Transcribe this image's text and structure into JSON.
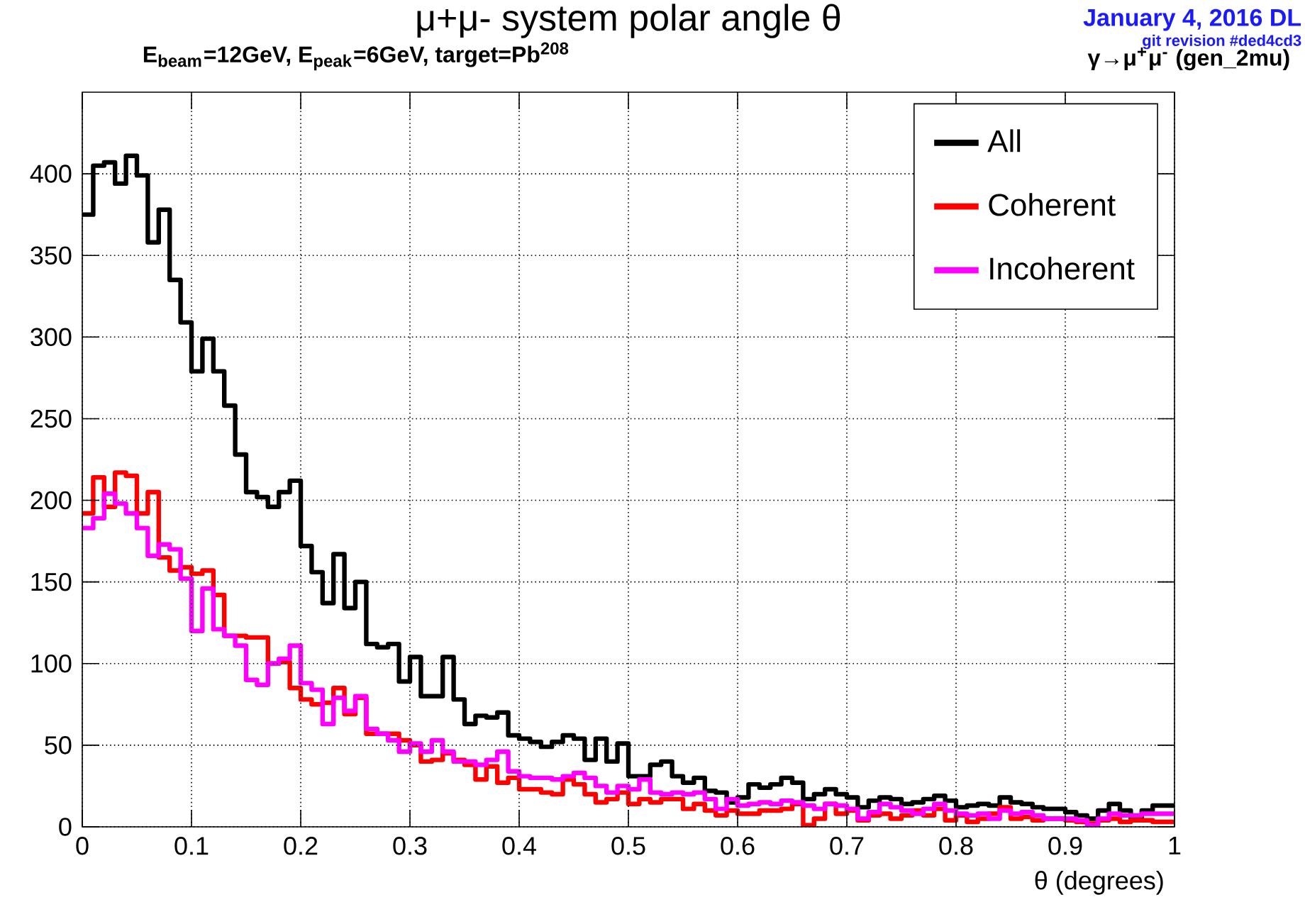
{
  "chart_data": {
    "type": "histogram",
    "title": "μ+μ- system polar angle θ",
    "subtitle": "E$_{beam}$=12GeV,  E$_{peak}$=6GeV,  target=Pb$^{208}$",
    "xlabel": "θ (degrees)",
    "annotations": [
      "January  4, 2016 DL",
      "git revision #ded4cd3",
      "γ→μ$^{+}$μ$^{-}$ (gen_2mu)"
    ],
    "bins": [
      0,
      0.01,
      0.02,
      0.03,
      0.04,
      0.05,
      0.06,
      0.07,
      0.08,
      0.09,
      0.1,
      0.11,
      0.12,
      0.13,
      0.14,
      0.15,
      0.16,
      0.17,
      0.18,
      0.19,
      0.2,
      0.21,
      0.22,
      0.23,
      0.24,
      0.25,
      0.26,
      0.27,
      0.28,
      0.29,
      0.3,
      0.31,
      0.32,
      0.33,
      0.34,
      0.35,
      0.36,
      0.37,
      0.38,
      0.39,
      0.4,
      0.41,
      0.42,
      0.43,
      0.44,
      0.45,
      0.46,
      0.47,
      0.48,
      0.49,
      0.5,
      0.51,
      0.52,
      0.53,
      0.54,
      0.55,
      0.56,
      0.57,
      0.58,
      0.59,
      0.6,
      0.61,
      0.62,
      0.63,
      0.64,
      0.65,
      0.66,
      0.67,
      0.68,
      0.69,
      0.7,
      0.71,
      0.72,
      0.73,
      0.74,
      0.75,
      0.76,
      0.77,
      0.78,
      0.79,
      0.8,
      0.81,
      0.82,
      0.83,
      0.84,
      0.85,
      0.86,
      0.87,
      0.88,
      0.89,
      0.9,
      0.91,
      0.92,
      0.93,
      0.94,
      0.95,
      0.96,
      0.97,
      0.98,
      0.99,
      1
    ],
    "series": [
      {
        "name": "All",
        "color": "#000000",
        "values": [
          375,
          405,
          407,
          394,
          411,
          399,
          358,
          378,
          335,
          309,
          279,
          299,
          279,
          258,
          228,
          205,
          202,
          196,
          205,
          212,
          172,
          156,
          137,
          167,
          134,
          150,
          112,
          110,
          112,
          89,
          104,
          80,
          80,
          104,
          78,
          63,
          68,
          67,
          70,
          56,
          54,
          52,
          49,
          52,
          56,
          54,
          41,
          54,
          40,
          51,
          31,
          31,
          38,
          40,
          31,
          27,
          30,
          22,
          21,
          15,
          18,
          26,
          24,
          26,
          30,
          27,
          17,
          20,
          23,
          20,
          18,
          12,
          16,
          18,
          17,
          14,
          15,
          17,
          19,
          16,
          12,
          13,
          14,
          13,
          18,
          15,
          14,
          12,
          11,
          11,
          9,
          7,
          5,
          10,
          14,
          10,
          5,
          10,
          13,
          13
        ]
      },
      {
        "name": "Coherent",
        "color": "#ff0000",
        "values": [
          192,
          214,
          196,
          217,
          215,
          192,
          205,
          165,
          157,
          159,
          155,
          157,
          142,
          117,
          117,
          116,
          116,
          100,
          101,
          85,
          78,
          75,
          76,
          85,
          69,
          79,
          57,
          57,
          57,
          53,
          50,
          40,
          41,
          45,
          41,
          38,
          29,
          37,
          27,
          30,
          23,
          23,
          21,
          20,
          29,
          26,
          20,
          15,
          17,
          21,
          14,
          17,
          15,
          17,
          17,
          11,
          14,
          10,
          7,
          10,
          8,
          8,
          10,
          10,
          11,
          14,
          1,
          5,
          14,
          8,
          10,
          4,
          7,
          8,
          5,
          7,
          10,
          7,
          11,
          4,
          7,
          3,
          5,
          8,
          12,
          5,
          6,
          4,
          5,
          5,
          4,
          3,
          2,
          4,
          5,
          3,
          4,
          4,
          3,
          3
        ]
      },
      {
        "name": "Incoherent",
        "color": "#ff00ff",
        "values": [
          183,
          189,
          204,
          198,
          192,
          183,
          166,
          173,
          170,
          152,
          120,
          146,
          121,
          117,
          111,
          90,
          87,
          100,
          103,
          111,
          88,
          84,
          63,
          79,
          71,
          80,
          60,
          57,
          53,
          46,
          51,
          46,
          53,
          46,
          40,
          40,
          38,
          41,
          46,
          34,
          31,
          30,
          30,
          29,
          31,
          33,
          30,
          25,
          21,
          25,
          23,
          29,
          21,
          20,
          21,
          20,
          21,
          17,
          11,
          17,
          13,
          14,
          15,
          14,
          16,
          15,
          13,
          11,
          14,
          13,
          11,
          5,
          9,
          14,
          12,
          10,
          8,
          11,
          14,
          10,
          8,
          7,
          8,
          5,
          10,
          8,
          9,
          7,
          5,
          5,
          5,
          4,
          1,
          5,
          8,
          7,
          7,
          8,
          8,
          8
        ]
      }
    ],
    "xlim": [
      0,
      1
    ],
    "xticks": [
      0,
      0.1,
      0.2,
      0.3,
      0.4,
      0.5,
      0.6,
      0.7,
      0.8,
      0.9,
      1
    ],
    "ylim": [
      0,
      450
    ],
    "yticks": [
      0,
      50,
      100,
      150,
      200,
      250,
      300,
      350,
      400
    ],
    "grid": true,
    "legend": "top right"
  }
}
